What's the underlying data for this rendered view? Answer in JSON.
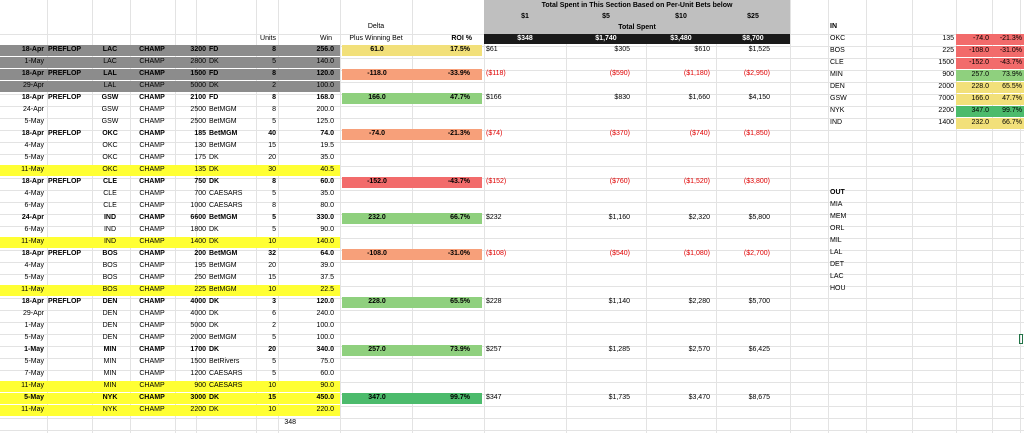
{
  "colors": {
    "gray": "#8c8c8c",
    "header_gray": "#bfbfbf",
    "black": "#1a1a1a",
    "yellow": "#ffff33",
    "green": "#8fd07e",
    "dark_green": "#4cbb6c",
    "red": "#f26b6b",
    "salmon": "#f7a07a",
    "pale_yellow": "#f2e07a",
    "neg_text": "#e00000",
    "grid": "#e3e3e3"
  },
  "header": {
    "section_title": "Total Spent in This Section Based on Per-Unit Bets below",
    "bet_sizes": [
      "$1",
      "$5",
      "$10",
      "$25"
    ],
    "total_spent": "Total Spent",
    "totals": [
      "$348",
      "$1,740",
      "$3,480",
      "$8,700"
    ],
    "delta_label": "Delta",
    "plus_winning": "Plus Winning Bet",
    "roi_label": "ROI %",
    "units_label": "Units",
    "win_label": "Win"
  },
  "rows": [
    {
      "date": "18-Apr",
      "stage": "PREFLOP",
      "team": "LAC",
      "type": "CHAMP",
      "line": "3200",
      "book": "FD",
      "units": "8",
      "win": "256.0",
      "delta": "61.0",
      "roi": "17.5%",
      "s1": "$61",
      "s5": "$305",
      "s10": "$610",
      "s25": "$1,525",
      "bold": true,
      "bg": "gray",
      "dcolor": "pale_yellow",
      "neg": false
    },
    {
      "date": "1-May",
      "stage": "",
      "team": "LAC",
      "type": "CHAMP",
      "line": "2800",
      "book": "DK",
      "units": "5",
      "win": "140.0",
      "delta": "",
      "roi": "",
      "s1": "",
      "s5": "",
      "s10": "",
      "s25": "",
      "bold": false,
      "bg": "gray",
      "dcolor": "",
      "neg": false
    },
    {
      "date": "18-Apr",
      "stage": "PREFLOP",
      "team": "LAL",
      "type": "CHAMP",
      "line": "1500",
      "book": "FD",
      "units": "8",
      "win": "120.0",
      "delta": "-118.0",
      "roi": "-33.9%",
      "s1": "($118)",
      "s5": "($590)",
      "s10": "($1,180)",
      "s25": "($2,950)",
      "bold": true,
      "bg": "gray",
      "dcolor": "salmon",
      "neg": true
    },
    {
      "date": "29-Apr",
      "stage": "",
      "team": "LAL",
      "type": "CHAMP",
      "line": "5000",
      "book": "DK",
      "units": "2",
      "win": "100.0",
      "delta": "",
      "roi": "",
      "s1": "",
      "s5": "",
      "s10": "",
      "s25": "",
      "bold": false,
      "bg": "gray",
      "dcolor": "",
      "neg": false
    },
    {
      "date": "18-Apr",
      "stage": "PREFLOP",
      "team": "GSW",
      "type": "CHAMP",
      "line": "2100",
      "book": "FD",
      "units": "8",
      "win": "168.0",
      "delta": "166.0",
      "roi": "47.7%",
      "s1": "$166",
      "s5": "$830",
      "s10": "$1,660",
      "s25": "$4,150",
      "bold": true,
      "bg": "",
      "dcolor": "green",
      "neg": false
    },
    {
      "date": "24-Apr",
      "stage": "",
      "team": "GSW",
      "type": "CHAMP",
      "line": "2500",
      "book": "BetMGM",
      "units": "8",
      "win": "200.0",
      "delta": "",
      "roi": "",
      "s1": "",
      "s5": "",
      "s10": "",
      "s25": "",
      "bold": false,
      "bg": "",
      "dcolor": "",
      "neg": false
    },
    {
      "date": "5-May",
      "stage": "",
      "team": "GSW",
      "type": "CHAMP",
      "line": "2500",
      "book": "BetMGM",
      "units": "5",
      "win": "125.0",
      "delta": "",
      "roi": "",
      "s1": "",
      "s5": "",
      "s10": "",
      "s25": "",
      "bold": false,
      "bg": "",
      "dcolor": "",
      "neg": false
    },
    {
      "date": "18-Apr",
      "stage": "PREFLOP",
      "team": "OKC",
      "type": "CHAMP",
      "line": "185",
      "book": "BetMGM",
      "units": "40",
      "win": "74.0",
      "delta": "-74.0",
      "roi": "-21.3%",
      "s1": "($74)",
      "s5": "($370)",
      "s10": "($740)",
      "s25": "($1,850)",
      "bold": true,
      "bg": "",
      "dcolor": "salmon",
      "neg": true
    },
    {
      "date": "4-May",
      "stage": "",
      "team": "OKC",
      "type": "CHAMP",
      "line": "130",
      "book": "BetMGM",
      "units": "15",
      "win": "19.5",
      "delta": "",
      "roi": "",
      "s1": "",
      "s5": "",
      "s10": "",
      "s25": "",
      "bold": false,
      "bg": "",
      "dcolor": "",
      "neg": false
    },
    {
      "date": "5-May",
      "stage": "",
      "team": "OKC",
      "type": "CHAMP",
      "line": "175",
      "book": "DK",
      "units": "20",
      "win": "35.0",
      "delta": "",
      "roi": "",
      "s1": "",
      "s5": "",
      "s10": "",
      "s25": "",
      "bold": false,
      "bg": "",
      "dcolor": "",
      "neg": false
    },
    {
      "date": "11-May",
      "stage": "",
      "team": "OKC",
      "type": "CHAMP",
      "line": "135",
      "book": "DK",
      "units": "30",
      "win": "40.5",
      "delta": "",
      "roi": "",
      "s1": "",
      "s5": "",
      "s10": "",
      "s25": "",
      "bold": false,
      "bg": "yellow",
      "dcolor": "",
      "neg": false
    },
    {
      "date": "18-Apr",
      "stage": "PREFLOP",
      "team": "CLE",
      "type": "CHAMP",
      "line": "750",
      "book": "DK",
      "units": "8",
      "win": "60.0",
      "delta": "-152.0",
      "roi": "-43.7%",
      "s1": "($152)",
      "s5": "($760)",
      "s10": "($1,520)",
      "s25": "($3,800)",
      "bold": true,
      "bg": "",
      "dcolor": "red",
      "neg": true
    },
    {
      "date": "4-May",
      "stage": "",
      "team": "CLE",
      "type": "CHAMP",
      "line": "700",
      "book": "CAESARS",
      "units": "5",
      "win": "35.0",
      "delta": "",
      "roi": "",
      "s1": "",
      "s5": "",
      "s10": "",
      "s25": "",
      "bold": false,
      "bg": "",
      "dcolor": "",
      "neg": false
    },
    {
      "date": "6-May",
      "stage": "",
      "team": "CLE",
      "type": "CHAMP",
      "line": "1000",
      "book": "CAESARS",
      "units": "8",
      "win": "80.0",
      "delta": "",
      "roi": "",
      "s1": "",
      "s5": "",
      "s10": "",
      "s25": "",
      "bold": false,
      "bg": "",
      "dcolor": "",
      "neg": false
    },
    {
      "date": "24-Apr",
      "stage": "",
      "team": "IND",
      "type": "CHAMP",
      "line": "6600",
      "book": "BetMGM",
      "units": "5",
      "win": "330.0",
      "delta": "232.0",
      "roi": "66.7%",
      "s1": "$232",
      "s5": "$1,160",
      "s10": "$2,320",
      "s25": "$5,800",
      "bold": true,
      "bg": "",
      "dcolor": "green",
      "neg": false
    },
    {
      "date": "6-May",
      "stage": "",
      "team": "IND",
      "type": "CHAMP",
      "line": "1800",
      "book": "DK",
      "units": "5",
      "win": "90.0",
      "delta": "",
      "roi": "",
      "s1": "",
      "s5": "",
      "s10": "",
      "s25": "",
      "bold": false,
      "bg": "",
      "dcolor": "",
      "neg": false
    },
    {
      "date": "11-May",
      "stage": "",
      "team": "IND",
      "type": "CHAMP",
      "line": "1400",
      "book": "DK",
      "units": "10",
      "win": "140.0",
      "delta": "",
      "roi": "",
      "s1": "",
      "s5": "",
      "s10": "",
      "s25": "",
      "bold": false,
      "bg": "yellow",
      "dcolor": "",
      "neg": false
    },
    {
      "date": "18-Apr",
      "stage": "PREFLOP",
      "team": "BOS",
      "type": "CHAMP",
      "line": "200",
      "book": "BetMGM",
      "units": "32",
      "win": "64.0",
      "delta": "-108.0",
      "roi": "-31.0%",
      "s1": "($108)",
      "s5": "($540)",
      "s10": "($1,080)",
      "s25": "($2,700)",
      "bold": true,
      "bg": "",
      "dcolor": "salmon",
      "neg": true
    },
    {
      "date": "4-May",
      "stage": "",
      "team": "BOS",
      "type": "CHAMP",
      "line": "195",
      "book": "BetMGM",
      "units": "20",
      "win": "39.0",
      "delta": "",
      "roi": "",
      "s1": "",
      "s5": "",
      "s10": "",
      "s25": "",
      "bold": false,
      "bg": "",
      "dcolor": "",
      "neg": false
    },
    {
      "date": "5-May",
      "stage": "",
      "team": "BOS",
      "type": "CHAMP",
      "line": "250",
      "book": "BetMGM",
      "units": "15",
      "win": "37.5",
      "delta": "",
      "roi": "",
      "s1": "",
      "s5": "",
      "s10": "",
      "s25": "",
      "bold": false,
      "bg": "",
      "dcolor": "",
      "neg": false
    },
    {
      "date": "11-May",
      "stage": "",
      "team": "BOS",
      "type": "CHAMP",
      "line": "225",
      "book": "BetMGM",
      "units": "10",
      "win": "22.5",
      "delta": "",
      "roi": "",
      "s1": "",
      "s5": "",
      "s10": "",
      "s25": "",
      "bold": false,
      "bg": "yellow",
      "dcolor": "",
      "neg": false
    },
    {
      "date": "18-Apr",
      "stage": "PREFLOP",
      "team": "DEN",
      "type": "CHAMP",
      "line": "4000",
      "book": "DK",
      "units": "3",
      "win": "120.0",
      "delta": "228.0",
      "roi": "65.5%",
      "s1": "$228",
      "s5": "$1,140",
      "s10": "$2,280",
      "s25": "$5,700",
      "bold": true,
      "bg": "",
      "dcolor": "green",
      "neg": false
    },
    {
      "date": "29-Apr",
      "stage": "",
      "team": "DEN",
      "type": "CHAMP",
      "line": "4000",
      "book": "DK",
      "units": "6",
      "win": "240.0",
      "delta": "",
      "roi": "",
      "s1": "",
      "s5": "",
      "s10": "",
      "s25": "",
      "bold": false,
      "bg": "",
      "dcolor": "",
      "neg": false
    },
    {
      "date": "1-May",
      "stage": "",
      "team": "DEN",
      "type": "CHAMP",
      "line": "5000",
      "book": "DK",
      "units": "2",
      "win": "100.0",
      "delta": "",
      "roi": "",
      "s1": "",
      "s5": "",
      "s10": "",
      "s25": "",
      "bold": false,
      "bg": "",
      "dcolor": "",
      "neg": false
    },
    {
      "date": "5-May",
      "stage": "",
      "team": "DEN",
      "type": "CHAMP",
      "line": "2000",
      "book": "BetMGM",
      "units": "5",
      "win": "100.0",
      "delta": "",
      "roi": "",
      "s1": "",
      "s5": "",
      "s10": "",
      "s25": "",
      "bold": false,
      "bg": "",
      "dcolor": "",
      "neg": false
    },
    {
      "date": "1-May",
      "stage": "",
      "team": "MIN",
      "type": "CHAMP",
      "line": "1700",
      "book": "DK",
      "units": "20",
      "win": "340.0",
      "delta": "257.0",
      "roi": "73.9%",
      "s1": "$257",
      "s5": "$1,285",
      "s10": "$2,570",
      "s25": "$6,425",
      "bold": true,
      "bg": "",
      "dcolor": "green",
      "neg": false
    },
    {
      "date": "5-May",
      "stage": "",
      "team": "MIN",
      "type": "CHAMP",
      "line": "1500",
      "book": "BetRivers",
      "units": "5",
      "win": "75.0",
      "delta": "",
      "roi": "",
      "s1": "",
      "s5": "",
      "s10": "",
      "s25": "",
      "bold": false,
      "bg": "",
      "dcolor": "",
      "neg": false
    },
    {
      "date": "7-May",
      "stage": "",
      "team": "MIN",
      "type": "CHAMP",
      "line": "1200",
      "book": "CAESARS",
      "units": "5",
      "win": "60.0",
      "delta": "",
      "roi": "",
      "s1": "",
      "s5": "",
      "s10": "",
      "s25": "",
      "bold": false,
      "bg": "",
      "dcolor": "",
      "neg": false
    },
    {
      "date": "11-May",
      "stage": "",
      "team": "MIN",
      "type": "CHAMP",
      "line": "900",
      "book": "CAESARS",
      "units": "10",
      "win": "90.0",
      "delta": "",
      "roi": "",
      "s1": "",
      "s5": "",
      "s10": "",
      "s25": "",
      "bold": false,
      "bg": "yellow",
      "dcolor": "",
      "neg": false
    },
    {
      "date": "5-May",
      "stage": "",
      "team": "NYK",
      "type": "CHAMP",
      "line": "3000",
      "book": "DK",
      "units": "15",
      "win": "450.0",
      "delta": "347.0",
      "roi": "99.7%",
      "s1": "$347",
      "s5": "$1,735",
      "s10": "$3,470",
      "s25": "$8,675",
      "bold": true,
      "bg": "yellow",
      "dcolor": "dark_green",
      "neg": false
    },
    {
      "date": "11-May",
      "stage": "",
      "team": "NYK",
      "type": "CHAMP",
      "line": "2200",
      "book": "DK",
      "units": "10",
      "win": "220.0",
      "delta": "",
      "roi": "",
      "s1": "",
      "s5": "",
      "s10": "",
      "s25": "",
      "bold": false,
      "bg": "yellow",
      "dcolor": "",
      "neg": false
    }
  ],
  "units_total": "348",
  "in_section": {
    "label": "IN",
    "rows": [
      {
        "team": "OKC",
        "a": "135",
        "delta": "-74.0",
        "roi": "-21.3%",
        "color": "red"
      },
      {
        "team": "BOS",
        "a": "225",
        "delta": "-108.0",
        "roi": "-31.0%",
        "color": "red"
      },
      {
        "team": "CLE",
        "a": "1500",
        "delta": "-152.0",
        "roi": "-43.7%",
        "color": "red"
      },
      {
        "team": "MIN",
        "a": "900",
        "delta": "257.0",
        "roi": "73.9%",
        "color": "green"
      },
      {
        "team": "DEN",
        "a": "2000",
        "delta": "228.0",
        "roi": "65.5%",
        "color": "pale_yellow"
      },
      {
        "team": "GSW",
        "a": "7000",
        "delta": "166.0",
        "roi": "47.7%",
        "color": "pale_yellow"
      },
      {
        "team": "NYK",
        "a": "2200",
        "delta": "347.0",
        "roi": "99.7%",
        "color": "dark_green"
      },
      {
        "team": "IND",
        "a": "1400",
        "delta": "232.0",
        "roi": "66.7%",
        "color": "pale_yellow"
      }
    ]
  },
  "out_section": {
    "label": "OUT",
    "teams": [
      "MIA",
      "MEM",
      "ORL",
      "MIL",
      "LAL",
      "DET",
      "LAC",
      "HOU"
    ]
  }
}
